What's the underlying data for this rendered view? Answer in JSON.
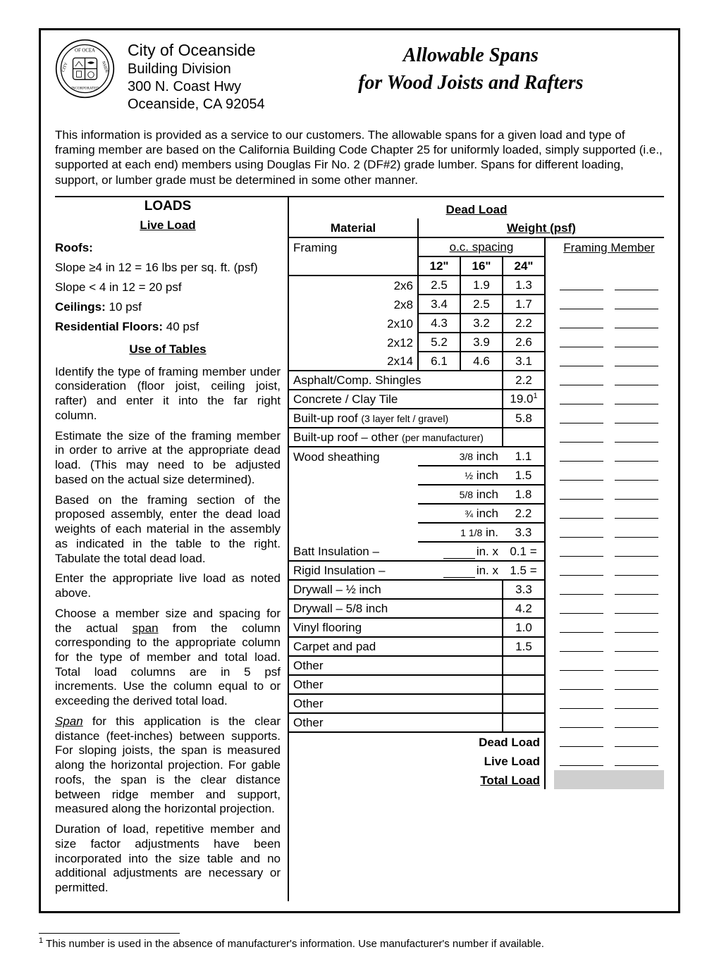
{
  "header": {
    "city_name": "City of Oceanside",
    "division": "Building Division",
    "address1": "300 N. Coast Hwy",
    "address2": "Oceanside, CA 92054",
    "title_line1": "Allowable Spans",
    "title_line2": "for Wood Joists and Rafters"
  },
  "intro": "This information is provided as a service to our customers.  The allowable spans for a given load and type of framing member are based on the California Building Code Chapter 25 for uniformly loaded, simply supported (i.e., supported at each end) members using Douglas Fir No. 2 (DF#2) grade lumber.  Spans for different loading, support, or lumber grade must be determined in some other manner.",
  "left": {
    "loads_heading": "LOADS",
    "live_load_heading": "Live Load",
    "roofs_label": "Roofs:",
    "slope1": "Slope ≥4 in 12 = 16 lbs per sq. ft. (psf)",
    "slope2": "Slope < 4 in 12 = 20 psf",
    "ceilings_label": "Ceilings:",
    "ceilings_val": " 10 psf",
    "floors_label": "Residential Floors:",
    "floors_val": "  40 psf",
    "use_heading": "Use of Tables",
    "p1": "Identify the type of framing member under consideration (floor joist, ceiling joist, rafter) and enter it into the far right column.",
    "p2": "Estimate the size of the framing member in order to arrive at the appropriate dead load. (This may need to be adjusted based on the actual size determined).",
    "p3": "Based on the framing section of the proposed assembly, enter the dead load weights of each material in the assembly as indicated in the table to the right. Tabulate the total dead load.",
    "p4": "Enter the appropriate live load as noted above.",
    "p5_a": "Choose a member size and spacing for the actual ",
    "p5_span": "span",
    "p5_b": " from the column corresponding to the appropriate column for the type of member and total load.  Total load columns are in 5 psf increments.  Use the column equal to or exceeding the derived total load.",
    "p6_a": "",
    "p6_span": "Span",
    "p6_b": " for this application is the clear distance (feet-inches) between supports.  For sloping joists, the span is measured along the horizontal projection.  For gable roofs, the span is the clear distance between ridge member and support, measured along the horizontal projection.",
    "p7": "Duration of load, repetitive member and size factor adjustments have been incorporated into the size table and no additional adjustments are necessary or permitted."
  },
  "right": {
    "dead_load_heading": "Dead Load",
    "material_h": "Material",
    "weight_h": "Weight (psf)",
    "framing_h": "Framing",
    "oc_spacing_h": "o.c. spacing",
    "framing_member_h": "Framing Member",
    "c12": "12\"",
    "c16": "16\"",
    "c24": "24\"",
    "framing_rows": [
      {
        "size": "2x6",
        "v12": "2.5",
        "v16": "1.9",
        "v24": "1.3"
      },
      {
        "size": "2x8",
        "v12": "3.4",
        "v16": "2.5",
        "v24": "1.7"
      },
      {
        "size": "2x10",
        "v12": "4.3",
        "v16": "3.2",
        "v24": "2.2"
      },
      {
        "size": "2x12",
        "v12": "5.2",
        "v16": "3.9",
        "v24": "2.6"
      },
      {
        "size": "2x14",
        "v12": "6.1",
        "v16": "4.6",
        "v24": "3.1"
      }
    ],
    "mat_rows": [
      {
        "label": "Asphalt/Comp. Shingles",
        "sublabel": "",
        "val": "2.2",
        "blank": true,
        "footnote": ""
      },
      {
        "label": "Concrete / Clay Tile",
        "sublabel": "",
        "val": "19.0",
        "blank": true,
        "footnote": "1"
      },
      {
        "label": "Built-up roof ",
        "sublabel": "(3 layer felt / gravel)",
        "val": "5.8",
        "blank": true,
        "footnote": ""
      },
      {
        "label": "Built-up roof – other ",
        "sublabel": "(per manufacturer)",
        "val": "",
        "blank": true,
        "footnote": ""
      }
    ],
    "wood_label": "Wood sheathing",
    "sheathing_rows": [
      {
        "thick": "3/8",
        "unit": " inch",
        "val": "1.1"
      },
      {
        "thick": "½",
        "unit": " inch",
        "val": "1.5"
      },
      {
        "thick": "5/8",
        "unit": " inch",
        "val": "1.8"
      },
      {
        "thick": "¾",
        "unit": " inch",
        "val": "2.2"
      },
      {
        "thick": "1 1/8",
        "unit": " in.",
        "val": "3.3"
      }
    ],
    "batt_label": "Batt Insulation  –",
    "batt_unit": "in.  x",
    "batt_val": "0.1 =",
    "rigid_label": "Rigid Insulation –",
    "rigid_unit": "in.  x",
    "rigid_val": "1.5 =",
    "drywall_half": "Drywall – ½ inch",
    "drywall_half_val": "3.3",
    "drywall_58": "Drywall – 5/8 inch",
    "drywall_58_val": "4.2",
    "vinyl": "Vinyl flooring",
    "vinyl_val": "1.0",
    "carpet": "Carpet and pad",
    "carpet_val": "1.5",
    "other": "Other",
    "dead_load_total": "Dead Load",
    "live_load_total": "Live Load",
    "total_load": "Total Load"
  },
  "footnote": " This number is used in the absence of manufacturer's information.  Use manufacturer's number if available.",
  "footnote_marker": "1"
}
